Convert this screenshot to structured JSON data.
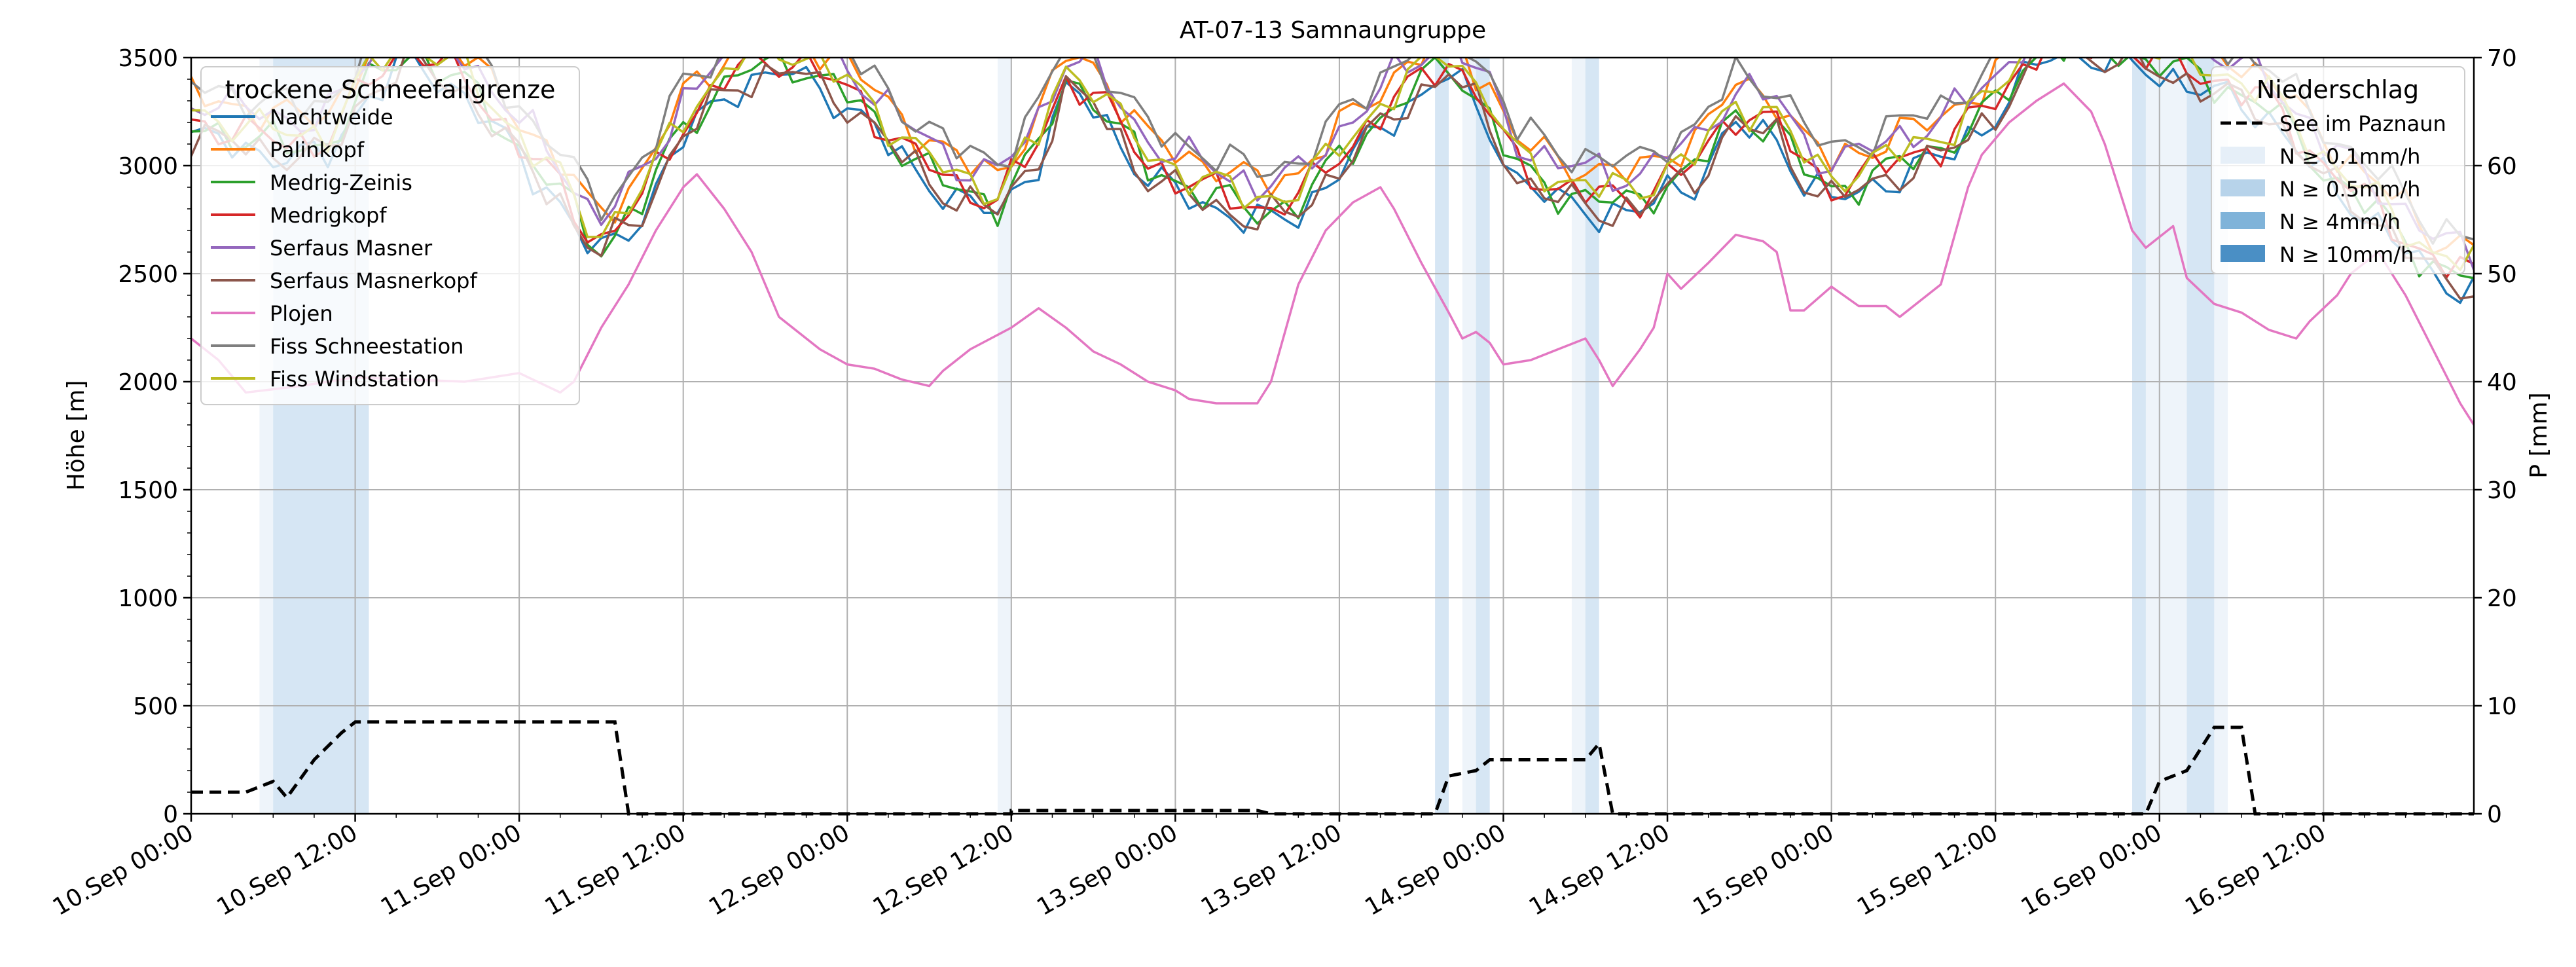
{
  "chart_data": {
    "type": "line",
    "title": "AT-07-13 Samnaungruppe",
    "ylabel": "Höhe [m]",
    "y2label": "P [mm]",
    "ylim": [
      0,
      3500
    ],
    "y2lim": [
      0,
      70
    ],
    "yticks": [
      0,
      500,
      1000,
      1500,
      2000,
      2500,
      3000,
      3500
    ],
    "y2ticks": [
      0,
      10,
      20,
      30,
      40,
      50,
      60,
      70
    ],
    "xlim_hours": [
      0,
      167
    ],
    "xticks": [
      {
        "h": 0,
        "label": "10.Sep 00:00"
      },
      {
        "h": 12,
        "label": "10.Sep 12:00"
      },
      {
        "h": 24,
        "label": "11.Sep 00:00"
      },
      {
        "h": 36,
        "label": "11.Sep 12:00"
      },
      {
        "h": 48,
        "label": "12.Sep 00:00"
      },
      {
        "h": 60,
        "label": "12.Sep 12:00"
      },
      {
        "h": 72,
        "label": "13.Sep 00:00"
      },
      {
        "h": 84,
        "label": "13.Sep 12:00"
      },
      {
        "h": 96,
        "label": "14.Sep 00:00"
      },
      {
        "h": 108,
        "label": "14.Sep 12:00"
      },
      {
        "h": 120,
        "label": "15.Sep 00:00"
      },
      {
        "h": 132,
        "label": "15.Sep 12:00"
      },
      {
        "h": 144,
        "label": "16.Sep 00:00"
      },
      {
        "h": 156,
        "label": "16.Sep 12:00"
      }
    ],
    "grid": true,
    "legend1": {
      "title": "trockene Schneefallgrenze",
      "position": "upper-left"
    },
    "legend2": {
      "title": "Niederschlag",
      "position": "upper-right"
    },
    "series": [
      {
        "name": "Nachtweide",
        "color": "#1f77b4",
        "offset": -70
      },
      {
        "name": "Palinkopf",
        "color": "#ff7f0e",
        "offset": 120
      },
      {
        "name": "Medrig-Zeinis",
        "color": "#2ca02c",
        "offset": -20
      },
      {
        "name": "Medrigkopf",
        "color": "#d62728",
        "offset": 0
      },
      {
        "name": "Serfaus Masner",
        "color": "#9467bd",
        "offset": 110
      },
      {
        "name": "Serfaus Masnerkopf",
        "color": "#8c564b",
        "offset": -60
      },
      {
        "name": "Plojen",
        "color": "#e377c2",
        "offset": null
      },
      {
        "name": "Fiss Schneestation",
        "color": "#7f7f7f",
        "offset": 170
      },
      {
        "name": "Fiss Windstation",
        "color": "#bcbd22",
        "offset": 40
      }
    ],
    "base_curve": [
      [
        0,
        3200
      ],
      [
        4,
        3150
      ],
      [
        8,
        3100
      ],
      [
        10,
        3120
      ],
      [
        13,
        3400
      ],
      [
        16,
        3550
      ],
      [
        20,
        3400
      ],
      [
        24,
        3100
      ],
      [
        27,
        2900
      ],
      [
        29,
        2700
      ],
      [
        30,
        2650
      ],
      [
        33,
        2850
      ],
      [
        36,
        3200
      ],
      [
        40,
        3450
      ],
      [
        44,
        3500
      ],
      [
        48,
        3350
      ],
      [
        52,
        3100
      ],
      [
        56,
        2900
      ],
      [
        59,
        2850
      ],
      [
        62,
        3100
      ],
      [
        64,
        3400
      ],
      [
        66,
        3350
      ],
      [
        70,
        3000
      ],
      [
        74,
        2900
      ],
      [
        78,
        2800
      ],
      [
        81,
        2850
      ],
      [
        84,
        3050
      ],
      [
        88,
        3300
      ],
      [
        92,
        3500
      ],
      [
        95,
        3250
      ],
      [
        97,
        3000
      ],
      [
        100,
        2900
      ],
      [
        104,
        2850
      ],
      [
        106,
        2850
      ],
      [
        108,
        2950
      ],
      [
        110,
        3000
      ],
      [
        113,
        3250
      ],
      [
        116,
        3200
      ],
      [
        118,
        3000
      ],
      [
        120,
        2900
      ],
      [
        124,
        3000
      ],
      [
        128,
        3100
      ],
      [
        132,
        3300
      ],
      [
        136,
        3600
      ],
      [
        140,
        3550
      ],
      [
        144,
        3500
      ],
      [
        148,
        3400
      ],
      [
        152,
        3300
      ],
      [
        156,
        3000
      ],
      [
        160,
        2800
      ],
      [
        164,
        2550
      ],
      [
        167,
        2500
      ]
    ],
    "plojen_values": [
      [
        0,
        2200
      ],
      [
        2,
        2100
      ],
      [
        4,
        1950
      ],
      [
        8,
        1980
      ],
      [
        12,
        2020
      ],
      [
        16,
        2010
      ],
      [
        20,
        2000
      ],
      [
        24,
        2040
      ],
      [
        27,
        1950
      ],
      [
        28,
        2000
      ],
      [
        30,
        2250
      ],
      [
        32,
        2450
      ],
      [
        34,
        2700
      ],
      [
        36,
        2900
      ],
      [
        37,
        2960
      ],
      [
        39,
        2800
      ],
      [
        41,
        2600
      ],
      [
        43,
        2300
      ],
      [
        46,
        2150
      ],
      [
        48,
        2080
      ],
      [
        50,
        2060
      ],
      [
        52,
        2010
      ],
      [
        54,
        1980
      ],
      [
        55,
        2050
      ],
      [
        57,
        2150
      ],
      [
        60,
        2250
      ],
      [
        62,
        2340
      ],
      [
        64,
        2250
      ],
      [
        66,
        2140
      ],
      [
        68,
        2080
      ],
      [
        70,
        2000
      ],
      [
        72,
        1960
      ],
      [
        73,
        1920
      ],
      [
        75,
        1900
      ],
      [
        78,
        1900
      ],
      [
        79,
        2000
      ],
      [
        81,
        2450
      ],
      [
        83,
        2700
      ],
      [
        85,
        2830
      ],
      [
        87,
        2900
      ],
      [
        88,
        2800
      ],
      [
        90,
        2550
      ],
      [
        92,
        2320
      ],
      [
        93,
        2200
      ],
      [
        94,
        2230
      ],
      [
        95,
        2180
      ],
      [
        96,
        2080
      ],
      [
        98,
        2100
      ],
      [
        100,
        2150
      ],
      [
        102,
        2200
      ],
      [
        103,
        2100
      ],
      [
        104,
        1980
      ],
      [
        106,
        2150
      ],
      [
        107,
        2250
      ],
      [
        108,
        2500
      ],
      [
        109,
        2430
      ],
      [
        111,
        2550
      ],
      [
        113,
        2680
      ],
      [
        115,
        2650
      ],
      [
        116,
        2600
      ],
      [
        117,
        2330
      ],
      [
        118,
        2330
      ],
      [
        120,
        2440
      ],
      [
        122,
        2350
      ],
      [
        124,
        2350
      ],
      [
        125,
        2300
      ],
      [
        126,
        2350
      ],
      [
        128,
        2450
      ],
      [
        130,
        2900
      ],
      [
        131,
        3050
      ],
      [
        133,
        3200
      ],
      [
        135,
        3300
      ],
      [
        137,
        3380
      ],
      [
        139,
        3250
      ],
      [
        140,
        3100
      ],
      [
        141,
        2900
      ],
      [
        142,
        2700
      ],
      [
        143,
        2620
      ],
      [
        145,
        2720
      ],
      [
        146,
        2480
      ],
      [
        148,
        2360
      ],
      [
        150,
        2320
      ],
      [
        152,
        2240
      ],
      [
        154,
        2200
      ],
      [
        155,
        2280
      ],
      [
        157,
        2400
      ],
      [
        158,
        2500
      ],
      [
        160,
        2600
      ],
      [
        162,
        2400
      ],
      [
        164,
        2150
      ],
      [
        166,
        1900
      ],
      [
        167,
        1800
      ]
    ],
    "paznaun_mm": [
      [
        0,
        2
      ],
      [
        4,
        2
      ],
      [
        5,
        2.5
      ],
      [
        6,
        3
      ],
      [
        7,
        1.5
      ],
      [
        9,
        5
      ],
      [
        11,
        7.5
      ],
      [
        12,
        8.5
      ],
      [
        24,
        8.5
      ],
      [
        31,
        8.5
      ],
      [
        32,
        0
      ],
      [
        60,
        0
      ],
      [
        60,
        0.3
      ],
      [
        78,
        0.3
      ],
      [
        79,
        0
      ],
      [
        91,
        0
      ],
      [
        92,
        3.5
      ],
      [
        94,
        4
      ],
      [
        95,
        5
      ],
      [
        102,
        5
      ],
      [
        103,
        6.5
      ],
      [
        104,
        0
      ],
      [
        143,
        0
      ],
      [
        144,
        3
      ],
      [
        146,
        4
      ],
      [
        147,
        6
      ],
      [
        148,
        8
      ],
      [
        150,
        8
      ],
      [
        151,
        0
      ],
      [
        167,
        0
      ]
    ],
    "precip_spans": [
      {
        "h0": 5,
        "h1": 13,
        "level": 1
      },
      {
        "h0": 6,
        "h1": 13,
        "level": 2
      },
      {
        "h0": 59,
        "h1": 60,
        "level": 1
      },
      {
        "h0": 91,
        "h1": 92,
        "level": 2
      },
      {
        "h0": 93,
        "h1": 95,
        "level": 1
      },
      {
        "h0": 94,
        "h1": 95,
        "level": 2
      },
      {
        "h0": 101,
        "h1": 103,
        "level": 1
      },
      {
        "h0": 102,
        "h1": 103,
        "level": 2
      },
      {
        "h0": 142,
        "h1": 149,
        "level": 1
      },
      {
        "h0": 142,
        "h1": 143,
        "level": 2
      },
      {
        "h0": 146,
        "h1": 148,
        "level": 2
      }
    ],
    "precip_legend": [
      {
        "label": "See im Paznaun",
        "kind": "dashed",
        "color": "#000000"
      },
      {
        "label": "N ≥ 0.1mm/h",
        "kind": "patch",
        "color": "#e6eff8"
      },
      {
        "label": "N ≥ 0.5mm/h",
        "kind": "patch",
        "color": "#b7d3ea"
      },
      {
        "label": "N ≥ 4mm/h",
        "kind": "patch",
        "color": "#7fb3d9"
      },
      {
        "label": "N ≥ 10mm/h",
        "kind": "patch",
        "color": "#4a8fc5"
      }
    ],
    "precip_colors": [
      "#eef4fa",
      "#d6e6f4"
    ]
  }
}
